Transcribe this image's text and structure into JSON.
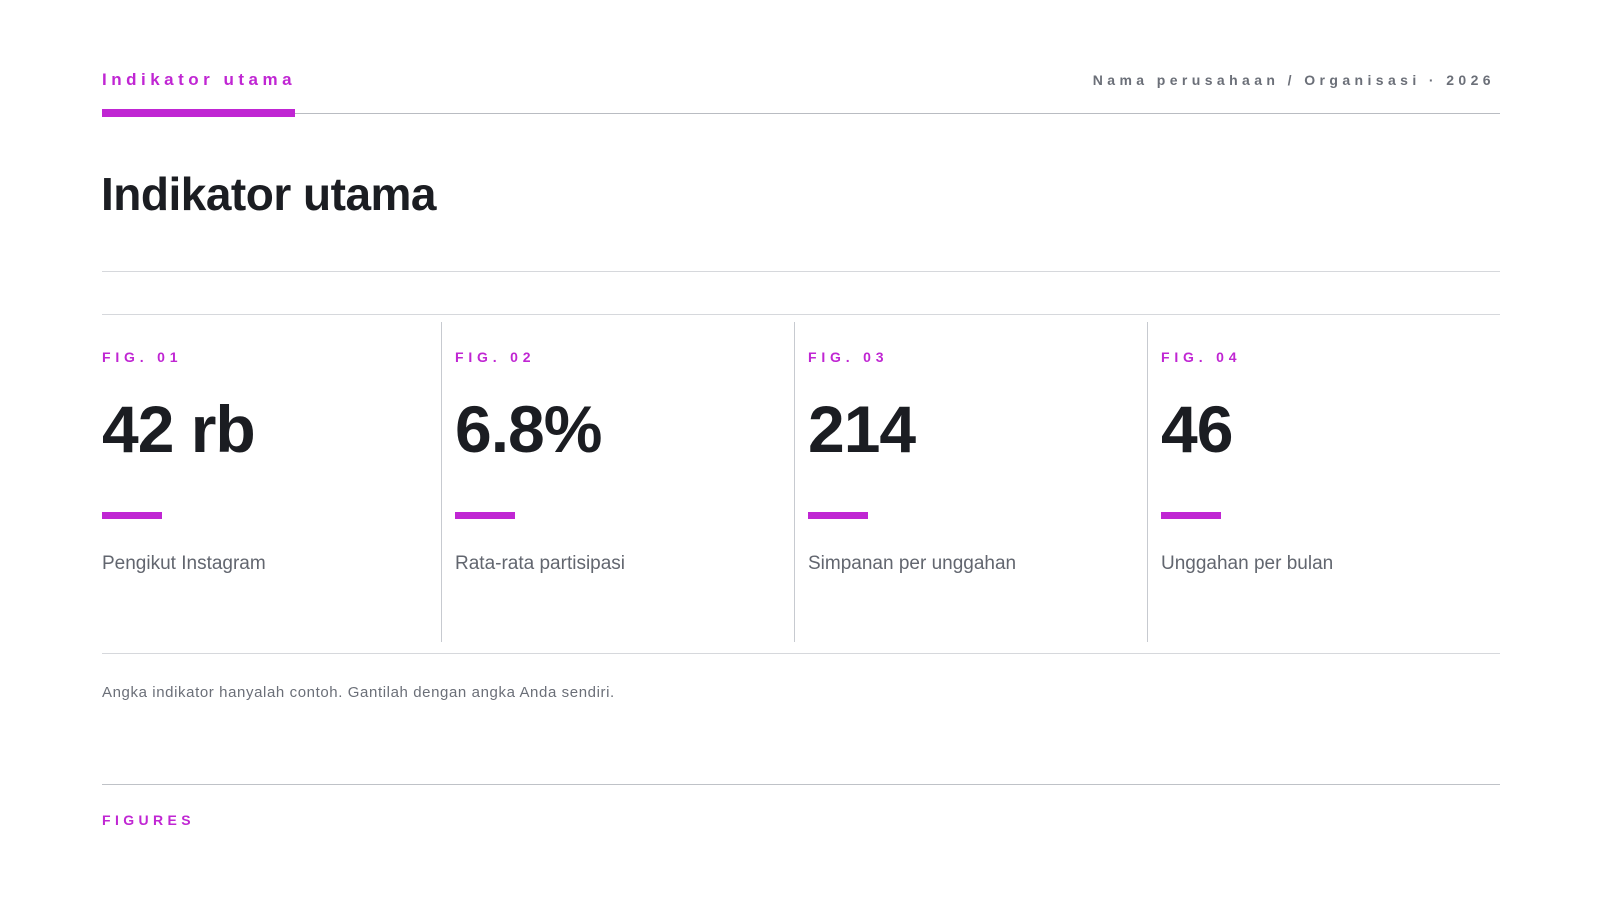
{
  "header": {
    "section_label": "Indikator utama",
    "meta": "Nama perusahaan / Organisasi · 2026"
  },
  "page_title": "Indikator utama",
  "kpis": [
    {
      "fig": "FIG. 01",
      "value": "42 rb",
      "label": "Pengikut Instagram"
    },
    {
      "fig": "FIG. 02",
      "value": "6.8%",
      "label": "Rata-rata partisipasi"
    },
    {
      "fig": "FIG. 03",
      "value": "214",
      "label": "Simpanan per unggahan"
    },
    {
      "fig": "FIG. 04",
      "value": "46",
      "label": "Unggahan per bulan"
    }
  ],
  "footnote": "Angka indikator hanyalah contoh. Gantilah dengan angka Anda sendiri.",
  "footer": {
    "label": "FIGURES"
  },
  "colors": {
    "accent": "#c026d3",
    "text": "#1b1d22",
    "muted": "#6b6f78"
  }
}
